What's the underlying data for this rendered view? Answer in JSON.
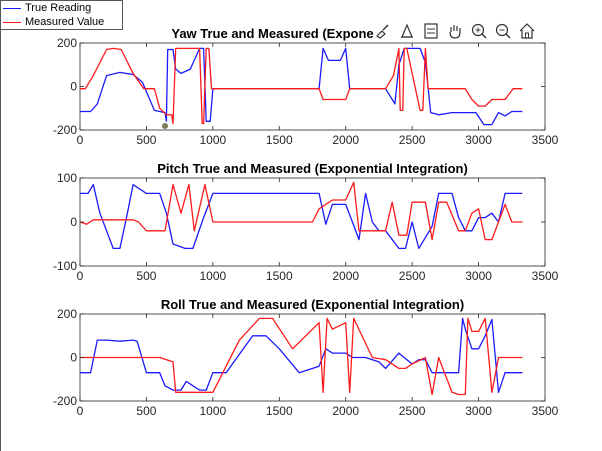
{
  "legend": {
    "items": [
      {
        "label": "True Reading",
        "color": "#1a1aff"
      },
      {
        "label": "Measured Value",
        "color": "#ff1a1a"
      }
    ]
  },
  "toolbar": {
    "icons": [
      "brush-icon",
      "data-tip-icon",
      "legend-icon",
      "pan-hand-icon",
      "zoom-in-icon",
      "zoom-out-icon",
      "home-icon"
    ]
  },
  "chart_data": [
    {
      "type": "line",
      "title": "Yaw True and Measured (Expone",
      "xlim": [
        0,
        3500
      ],
      "ylim": [
        -200,
        200
      ],
      "xticks": [
        0,
        500,
        1000,
        1500,
        2000,
        2500,
        3000,
        3500
      ],
      "yticks": [
        -200,
        0,
        200
      ],
      "grid": false,
      "series": [
        {
          "name": "True Reading",
          "color": "#1a1aff",
          "x": [
            0,
            80,
            130,
            200,
            300,
            400,
            470,
            560,
            640,
            650,
            660,
            700,
            720,
            760,
            830,
            900,
            930,
            950,
            980,
            1000,
            1040,
            1100,
            1500,
            1800,
            1830,
            1870,
            1960,
            2000,
            2030,
            2070,
            2200,
            2300,
            2370,
            2400,
            2440,
            2480,
            2560,
            2600,
            2640,
            2700,
            2800,
            2900,
            2980,
            3040,
            3100,
            3150,
            3200,
            3250,
            3330
          ],
          "y": [
            -115,
            -115,
            -80,
            50,
            65,
            55,
            20,
            -110,
            -120,
            -160,
            170,
            170,
            80,
            60,
            80,
            175,
            175,
            -160,
            -160,
            -10,
            -10,
            -10,
            -10,
            -10,
            175,
            120,
            120,
            175,
            -10,
            -10,
            -10,
            -10,
            -80,
            100,
            175,
            175,
            175,
            110,
            -120,
            -130,
            -120,
            -120,
            -120,
            -175,
            -175,
            -120,
            -135,
            -115,
            -115
          ]
        },
        {
          "name": "Measured Value",
          "color": "#ff1a1a",
          "x": [
            0,
            40,
            100,
            200,
            250,
            310,
            400,
            480,
            560,
            600,
            650,
            690,
            700,
            720,
            740,
            760,
            900,
            920,
            930,
            950,
            970,
            990,
            1010,
            1500,
            1800,
            1830,
            1860,
            1900,
            1950,
            2000,
            2030,
            2100,
            2200,
            2300,
            2360,
            2400,
            2410,
            2430,
            2440,
            2460,
            2560,
            2580,
            2600,
            2620,
            2640,
            2700,
            2900,
            2950,
            3000,
            3050,
            3100,
            3200,
            3260,
            3330
          ],
          "y": [
            -10,
            -10,
            50,
            170,
            175,
            170,
            60,
            -10,
            -10,
            -100,
            -130,
            -130,
            -170,
            175,
            175,
            175,
            175,
            -170,
            -170,
            175,
            175,
            -10,
            -10,
            -10,
            -10,
            -60,
            -60,
            -60,
            -60,
            -60,
            -10,
            -10,
            -10,
            -10,
            50,
            175,
            -110,
            -110,
            175,
            175,
            -110,
            -110,
            175,
            -10,
            -10,
            -10,
            -10,
            -60,
            -90,
            -90,
            -60,
            -60,
            -10,
            -10
          ]
        }
      ]
    },
    {
      "type": "line",
      "title": "Pitch True and Measured (Exponential Integration)",
      "xlim": [
        0,
        3500
      ],
      "ylim": [
        -100,
        100
      ],
      "xticks": [
        0,
        500,
        1000,
        1500,
        2000,
        2500,
        3000,
        3500
      ],
      "yticks": [
        -100,
        0,
        100
      ],
      "grid": false,
      "series": [
        {
          "name": "True Reading",
          "color": "#1a1aff",
          "x": [
            0,
            60,
            100,
            150,
            250,
            300,
            350,
            400,
            500,
            600,
            650,
            700,
            790,
            850,
            930,
            1000,
            1050,
            1750,
            1800,
            1850,
            1900,
            2000,
            2050,
            2100,
            2150,
            2200,
            2250,
            2300,
            2400,
            2450,
            2500,
            2550,
            2650,
            2700,
            2800,
            2850,
            2900,
            2950,
            3000,
            3050,
            3100,
            3150,
            3200,
            3250,
            3330
          ],
          "y": [
            65,
            65,
            85,
            20,
            -60,
            -60,
            10,
            85,
            65,
            65,
            20,
            -50,
            -60,
            -60,
            10,
            65,
            65,
            65,
            65,
            -5,
            40,
            40,
            0,
            -40,
            65,
            0,
            -20,
            -20,
            -60,
            -60,
            0,
            -60,
            -10,
            65,
            65,
            10,
            -20,
            -20,
            10,
            10,
            20,
            0,
            65,
            65,
            65
          ]
        },
        {
          "name": "Measured Value",
          "color": "#ff1a1a",
          "x": [
            0,
            50,
            100,
            200,
            300,
            400,
            440,
            500,
            550,
            640,
            700,
            760,
            820,
            860,
            940,
            1000,
            1050,
            1700,
            1750,
            1800,
            1900,
            2000,
            2060,
            2100,
            2200,
            2300,
            2350,
            2400,
            2460,
            2500,
            2600,
            2650,
            2700,
            2760,
            2850,
            2900,
            2950,
            3000,
            3050,
            3100,
            3200,
            3250,
            3330
          ],
          "y": [
            0,
            -5,
            5,
            5,
            5,
            5,
            0,
            -20,
            -20,
            -20,
            85,
            20,
            85,
            -20,
            85,
            0,
            0,
            0,
            0,
            30,
            50,
            50,
            90,
            -20,
            -20,
            -20,
            45,
            -30,
            -30,
            45,
            45,
            -40,
            45,
            45,
            -20,
            -20,
            20,
            30,
            -40,
            -40,
            40,
            0,
            0
          ]
        }
      ]
    },
    {
      "type": "line",
      "title": "Roll True and Measured (Exponential Integration)",
      "xlim": [
        0,
        3500
      ],
      "ylim": [
        -200,
        200
      ],
      "xticks": [
        0,
        500,
        1000,
        1500,
        2000,
        2500,
        3000,
        3500
      ],
      "yticks": [
        -200,
        0,
        200
      ],
      "grid": false,
      "series": [
        {
          "name": "True Reading",
          "color": "#1a1aff",
          "x": [
            0,
            80,
            130,
            200,
            300,
            400,
            430,
            500,
            600,
            640,
            700,
            760,
            800,
            850,
            900,
            950,
            1000,
            1100,
            1300,
            1400,
            1500,
            1650,
            1800,
            1850,
            1900,
            2000,
            2050,
            2150,
            2250,
            2300,
            2400,
            2500,
            2550,
            2600,
            2650,
            2800,
            2850,
            2880,
            2900,
            2950,
            3000,
            3050,
            3100,
            3150,
            3200,
            3250,
            3330
          ],
          "y": [
            -70,
            -70,
            80,
            80,
            75,
            80,
            75,
            -70,
            -70,
            -130,
            -150,
            -150,
            -110,
            -130,
            -150,
            -150,
            -70,
            -70,
            100,
            100,
            40,
            -70,
            -40,
            40,
            20,
            20,
            0,
            0,
            -20,
            -50,
            20,
            -30,
            -10,
            -10,
            -70,
            -70,
            -70,
            180,
            130,
            40,
            40,
            100,
            175,
            -160,
            -70,
            -70,
            -70
          ]
        },
        {
          "name": "Measured Value",
          "color": "#ff1a1a",
          "x": [
            0,
            100,
            200,
            300,
            400,
            500,
            600,
            700,
            720,
            750,
            800,
            900,
            1000,
            1100,
            1200,
            1350,
            1450,
            1600,
            1800,
            1830,
            1860,
            1900,
            2000,
            2030,
            2060,
            2200,
            2300,
            2400,
            2450,
            2500,
            2600,
            2650,
            2700,
            2800,
            2850,
            2900,
            2920,
            2950,
            3000,
            3050,
            3100,
            3150,
            3200,
            3330
          ],
          "y": [
            0,
            0,
            0,
            0,
            0,
            0,
            0,
            -20,
            -160,
            -160,
            -160,
            -160,
            -160,
            -40,
            80,
            180,
            180,
            40,
            160,
            -160,
            180,
            130,
            160,
            -160,
            180,
            0,
            -10,
            -50,
            -50,
            -30,
            0,
            -170,
            0,
            -160,
            -170,
            -170,
            180,
            120,
            120,
            180,
            -160,
            0,
            0,
            0
          ]
        }
      ]
    }
  ]
}
